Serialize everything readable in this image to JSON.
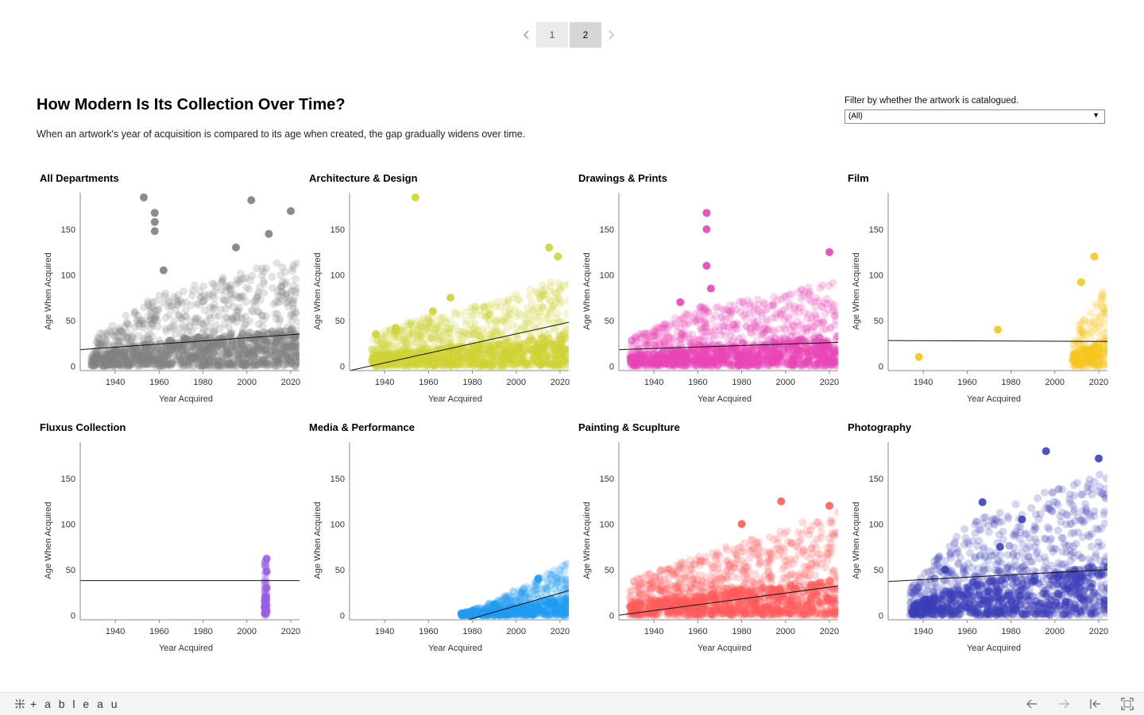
{
  "pager": {
    "pages": [
      "1",
      "2"
    ],
    "active": "2"
  },
  "header": {
    "title": "How Modern Is Its Collection Over Time?",
    "subtitle": "When an artwork's year of acquisition is compared to its age when created, the gap gradually widens over time."
  },
  "filter": {
    "label": "Filter by whether the artwork is catalogued.",
    "value": "(All)"
  },
  "footer": {
    "logo_text": "+ a b l e a u"
  },
  "chart_data": [
    {
      "type": "scatter",
      "title": "All Departments",
      "color": "#808080",
      "xlabel": "Year Acquired",
      "ylabel": "Age When Acquired",
      "xlim": [
        1924,
        2024
      ],
      "ylim": [
        -5,
        190
      ],
      "xticks": [
        1940,
        1960,
        1980,
        2000,
        2020
      ],
      "yticks": [
        0,
        50,
        100,
        150
      ],
      "x_range": [
        1929,
        2024
      ],
      "band": [
        [
          1929,
          30
        ],
        [
          1960,
          80
        ],
        [
          1985,
          95
        ],
        [
          2024,
          120
        ]
      ],
      "trend": [
        [
          1924,
          18
        ],
        [
          2024,
          35
        ]
      ],
      "highlights": [
        [
          1953,
          185
        ],
        [
          2002,
          182
        ],
        [
          1958,
          168
        ],
        [
          1958,
          158
        ],
        [
          1958,
          148
        ],
        [
          1962,
          105
        ],
        [
          1995,
          130
        ],
        [
          2010,
          145
        ],
        [
          2020,
          170
        ]
      ]
    },
    {
      "type": "scatter",
      "title": "Architecture & Design",
      "color": "#cfd334",
      "xlabel": "Year Acquired",
      "ylabel": "Age When Acquired",
      "xlim": [
        1924,
        2024
      ],
      "ylim": [
        -5,
        190
      ],
      "xticks": [
        1940,
        1960,
        1980,
        2000,
        2020
      ],
      "yticks": [
        0,
        50,
        100,
        150
      ],
      "x_range": [
        1934,
        2024
      ],
      "band": [
        [
          1934,
          35
        ],
        [
          1960,
          55
        ],
        [
          1990,
          70
        ],
        [
          2024,
          100
        ]
      ],
      "trend": [
        [
          1924,
          -5
        ],
        [
          2024,
          48
        ]
      ],
      "highlights": [
        [
          1954,
          185
        ],
        [
          1936,
          35
        ],
        [
          1945,
          42
        ],
        [
          1962,
          60
        ],
        [
          1970,
          75
        ],
        [
          2015,
          130
        ],
        [
          2019,
          120
        ]
      ]
    },
    {
      "type": "scatter",
      "title": "Drawings & Prints",
      "color": "#e845b5",
      "xlabel": "Year Acquired",
      "ylabel": "Age When Acquired",
      "xlim": [
        1924,
        2024
      ],
      "ylim": [
        -5,
        190
      ],
      "xticks": [
        1940,
        1960,
        1980,
        2000,
        2020
      ],
      "yticks": [
        0,
        50,
        100,
        150
      ],
      "x_range": [
        1929,
        2024
      ],
      "band": [
        [
          1929,
          30
        ],
        [
          1960,
          65
        ],
        [
          1990,
          75
        ],
        [
          2024,
          95
        ]
      ],
      "trend": [
        [
          1924,
          18
        ],
        [
          2024,
          26
        ]
      ],
      "highlights": [
        [
          1964,
          168
        ],
        [
          1964,
          150
        ],
        [
          1964,
          110
        ],
        [
          1966,
          85
        ],
        [
          2020,
          125
        ],
        [
          1952,
          70
        ]
      ]
    },
    {
      "type": "scatter",
      "title": "Film",
      "color": "#f6c51c",
      "xlabel": "Year Acquired",
      "ylabel": "Age When Acquired",
      "xlim": [
        1924,
        2024
      ],
      "ylim": [
        -5,
        190
      ],
      "xticks": [
        1940,
        1960,
        1980,
        2000,
        2020
      ],
      "yticks": [
        0,
        50,
        100,
        150
      ],
      "x_range": [
        2008,
        2024
      ],
      "band": [
        [
          2008,
          40
        ],
        [
          2016,
          60
        ],
        [
          2024,
          90
        ]
      ],
      "trend": [
        [
          1924,
          28
        ],
        [
          2024,
          27
        ]
      ],
      "highlights": [
        [
          2018,
          120
        ],
        [
          2012,
          92
        ],
        [
          1938,
          10
        ],
        [
          1974,
          40
        ]
      ]
    },
    {
      "type": "scatter",
      "title": "Fluxus Collection",
      "color": "#9a5ee6",
      "xlabel": "Year Acquired",
      "ylabel": "Age When Acquired",
      "xlim": [
        1924,
        2024
      ],
      "ylim": [
        -5,
        190
      ],
      "xticks": [
        1940,
        1960,
        1980,
        2000,
        2020
      ],
      "yticks": [
        0,
        50,
        100,
        150
      ],
      "x_range": [
        2008,
        2009
      ],
      "band": [
        [
          2008,
          60
        ],
        [
          2009,
          60
        ]
      ],
      "trend": [
        [
          1924,
          38
        ],
        [
          2024,
          38
        ]
      ],
      "highlights": [
        [
          2009,
          62
        ],
        [
          2009,
          48
        ],
        [
          2009,
          30
        ],
        [
          2009,
          5
        ]
      ]
    },
    {
      "type": "scatter",
      "title": "Media & Performance",
      "color": "#1e9cf1",
      "xlabel": "Year Acquired",
      "ylabel": "Age When Acquired",
      "xlim": [
        1924,
        2024
      ],
      "ylim": [
        -5,
        190
      ],
      "xticks": [
        1940,
        1960,
        1980,
        2000,
        2020
      ],
      "yticks": [
        0,
        50,
        100,
        150
      ],
      "x_range": [
        1975,
        2024
      ],
      "band": [
        [
          1975,
          2
        ],
        [
          1990,
          15
        ],
        [
          2005,
          35
        ],
        [
          2024,
          58
        ]
      ],
      "trend": [
        [
          1978,
          -5
        ],
        [
          2024,
          27
        ]
      ],
      "highlights": [
        [
          1975,
          2
        ],
        [
          1980,
          5
        ],
        [
          1990,
          12
        ],
        [
          2010,
          40
        ]
      ]
    },
    {
      "type": "scatter",
      "title": "Painting & Scuplture",
      "color": "#ff5a5a",
      "xlabel": "Year Acquired",
      "ylabel": "Age When Acquired",
      "xlim": [
        1924,
        2024
      ],
      "ylim": [
        -5,
        190
      ],
      "xticks": [
        1940,
        1960,
        1980,
        2000,
        2020
      ],
      "yticks": [
        0,
        50,
        100,
        150
      ],
      "x_range": [
        1929,
        2024
      ],
      "band": [
        [
          1929,
          40
        ],
        [
          1960,
          65
        ],
        [
          1990,
          90
        ],
        [
          2024,
          115
        ]
      ],
      "trend": [
        [
          1924,
          0
        ],
        [
          2024,
          32
        ]
      ],
      "highlights": [
        [
          1998,
          125
        ],
        [
          2020,
          120
        ],
        [
          1980,
          100
        ]
      ]
    },
    {
      "type": "scatter",
      "title": "Photography",
      "color": "#3c3fb8",
      "xlabel": "Year Acquired",
      "ylabel": "Age When Acquired",
      "xlim": [
        1924,
        2024
      ],
      "ylim": [
        -5,
        190
      ],
      "xticks": [
        1940,
        1960,
        1980,
        2000,
        2020
      ],
      "yticks": [
        0,
        50,
        100,
        150
      ],
      "x_range": [
        1934,
        2024
      ],
      "band": [
        [
          1934,
          30
        ],
        [
          1960,
          100
        ],
        [
          1990,
          130
        ],
        [
          2024,
          160
        ]
      ],
      "trend": [
        [
          1924,
          37
        ],
        [
          2024,
          50
        ]
      ],
      "highlights": [
        [
          1996,
          180
        ],
        [
          2020,
          172
        ],
        [
          1967,
          124
        ],
        [
          1950,
          50
        ],
        [
          1985,
          105
        ],
        [
          1975,
          75
        ]
      ]
    }
  ]
}
